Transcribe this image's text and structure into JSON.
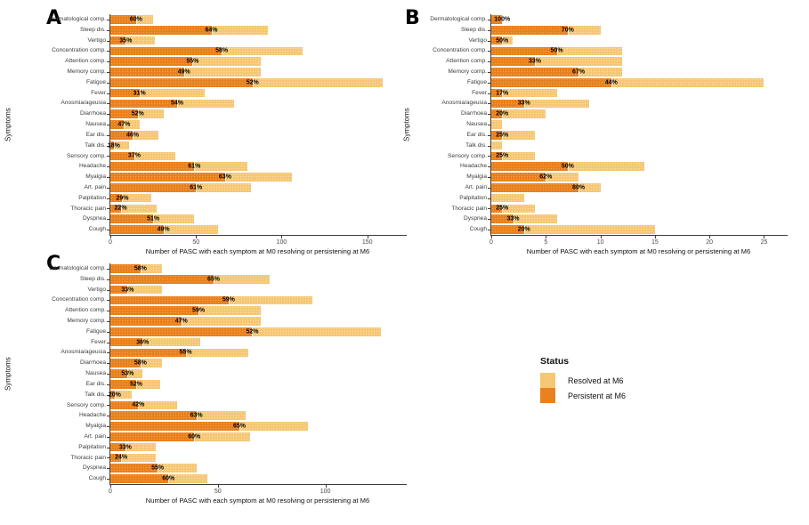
{
  "legend": {
    "title": "Status",
    "items": [
      {
        "label": "Resolved at M6",
        "color": "#F6C774"
      },
      {
        "label": "Persistent at M6",
        "color": "#E8811E"
      }
    ]
  },
  "colors": {
    "resolved": "#F6C774",
    "persistent": "#E8811E",
    "axis": "#3c3c3c",
    "background": "#ffffff"
  },
  "chart_data": [
    {
      "type": "bar",
      "orientation": "horizontal",
      "stacked": true,
      "panel_label": "A",
      "ylabel": "Symptoms",
      "xlabel": "Number of PASC with each symptom at M0 resolving or persistening at M6",
      "xlim": [
        0,
        172
      ],
      "x_ticks": [
        0,
        50,
        100,
        150
      ],
      "categories": [
        "Dermatological comp.",
        "Sleep dis.",
        "Vertigo",
        "Concentration comp.",
        "Attention comp.",
        "Memory comp.",
        "Fatigue",
        "Fever",
        "Anosmia/ageusia",
        "Diarrhoea",
        "Nausea",
        "Ear dis.",
        "Talk dis.",
        "Sensory comp.",
        "Headache",
        "Myalgia",
        "Art. pain",
        "Palpitation",
        "Thoracic pain",
        "Dyspnea",
        "Cough"
      ],
      "series": [
        {
          "name": "Persistent at M6",
          "color": "#E8811E",
          "values": [
            15,
            59,
            9,
            65,
            48,
            43,
            83,
            17,
            39,
            16,
            8,
            13,
            2,
            14,
            49,
            67,
            50,
            7,
            6,
            25,
            31
          ]
        },
        {
          "name": "Resolved at M6",
          "color": "#F6C774",
          "values": [
            10,
            33,
            17,
            47,
            40,
            45,
            76,
            38,
            33,
            15,
            9,
            15,
            9,
            24,
            31,
            39,
            32,
            17,
            21,
            24,
            32
          ]
        }
      ],
      "totals": [
        25,
        92,
        26,
        112,
        88,
        88,
        159,
        55,
        72,
        31,
        17,
        28,
        11,
        38,
        80,
        106,
        82,
        24,
        27,
        49,
        63
      ],
      "pct_labels": [
        "60%",
        "64%",
        "35%",
        "58%",
        "55%",
        "49%",
        "52%",
        "31%",
        "54%",
        "52%",
        "47%",
        "46%",
        "18%",
        "37%",
        "61%",
        "63%",
        "61%",
        "29%",
        "22%",
        "51%",
        "49%"
      ]
    },
    {
      "type": "bar",
      "orientation": "horizontal",
      "stacked": true,
      "panel_label": "B",
      "ylabel": "Symptoms",
      "xlabel": "Number of PASC with each symptom at M0 resolving or persistening at M6",
      "xlim": [
        0,
        27
      ],
      "x_ticks": [
        0,
        5,
        10,
        15,
        20,
        25
      ],
      "categories": [
        "Dermatological comp.",
        "Sleep dis.",
        "Vertigo",
        "Concentration comp.",
        "Attention comp.",
        "Memory comp.",
        "Fatigue",
        "Fever",
        "Anosmia/ageusia",
        "Diarrhoea",
        "Nausea",
        "Ear dis.",
        "Talk dis.",
        "Sensory comp.",
        "Headache",
        "Myalgia",
        "Art. pain",
        "Palpitation",
        "Thoracic pain",
        "Dyspnea",
        "Cough"
      ],
      "series": [
        {
          "name": "Persistent at M6",
          "color": "#E8811E",
          "values": [
            1,
            7,
            1,
            6,
            4,
            8,
            11,
            1,
            3,
            1,
            0,
            1,
            0,
            1,
            7,
            5,
            8,
            0,
            1,
            2,
            3
          ]
        },
        {
          "name": "Resolved at M6",
          "color": "#F6C774",
          "values": [
            0,
            3,
            1,
            6,
            8,
            4,
            14,
            5,
            6,
            4,
            1,
            3,
            1,
            3,
            7,
            3,
            2,
            3,
            3,
            4,
            12
          ]
        }
      ],
      "totals": [
        1,
        10,
        2,
        12,
        12,
        12,
        25,
        6,
        9,
        5,
        1,
        4,
        1,
        4,
        14,
        8,
        10,
        3,
        4,
        6,
        15
      ],
      "pct_labels": [
        "100%",
        "70%",
        "50%",
        "50%",
        "33%",
        "67%",
        "44%",
        "17%",
        "33%",
        "20%",
        "",
        "25%",
        "",
        "25%",
        "50%",
        "62%",
        "80%",
        "",
        "25%",
        "33%",
        "20%"
      ]
    },
    {
      "type": "bar",
      "orientation": "horizontal",
      "stacked": true,
      "panel_label": "C",
      "ylabel": "Symptoms",
      "xlabel": "Number of PASC with each symptom at M0 resolving or persistening at M6",
      "xlim": [
        0,
        137
      ],
      "x_ticks": [
        0,
        50,
        100
      ],
      "categories": [
        "Dermatological comp.",
        "Sleep dis.",
        "Vertigo",
        "Concentration comp.",
        "Attention comp.",
        "Memory comp.",
        "Fatigue",
        "Fever",
        "Anosmia/ageusia",
        "Diarrhoea",
        "Nausea",
        "Ear dis.",
        "Talk dis.",
        "Sensory comp.",
        "Headache",
        "Myalgia",
        "Art. pain",
        "Palpitation",
        "Thoracic pain",
        "Dyspnea",
        "Cough"
      ],
      "series": [
        {
          "name": "Persistent at M6",
          "color": "#E8811E",
          "values": [
            14,
            48,
            8,
            55,
            41,
            33,
            66,
            15,
            35,
            14,
            8,
            12,
            2,
            13,
            40,
            60,
            39,
            7,
            5,
            22,
            27
          ]
        },
        {
          "name": "Resolved at M6",
          "color": "#F6C774",
          "values": [
            10,
            26,
            16,
            39,
            29,
            37,
            60,
            27,
            29,
            10,
            7,
            11,
            8,
            18,
            23,
            32,
            26,
            14,
            16,
            18,
            18
          ]
        }
      ],
      "totals": [
        24,
        74,
        24,
        94,
        70,
        70,
        126,
        42,
        64,
        24,
        15,
        23,
        10,
        31,
        63,
        92,
        65,
        21,
        21,
        40,
        45
      ],
      "pct_labels": [
        "58%",
        "65%",
        "33%",
        "59%",
        "59%",
        "47%",
        "52%",
        "36%",
        "55%",
        "58%",
        "53%",
        "52%",
        "20%",
        "42%",
        "63%",
        "65%",
        "60%",
        "33%",
        "24%",
        "55%",
        "60%"
      ]
    }
  ]
}
